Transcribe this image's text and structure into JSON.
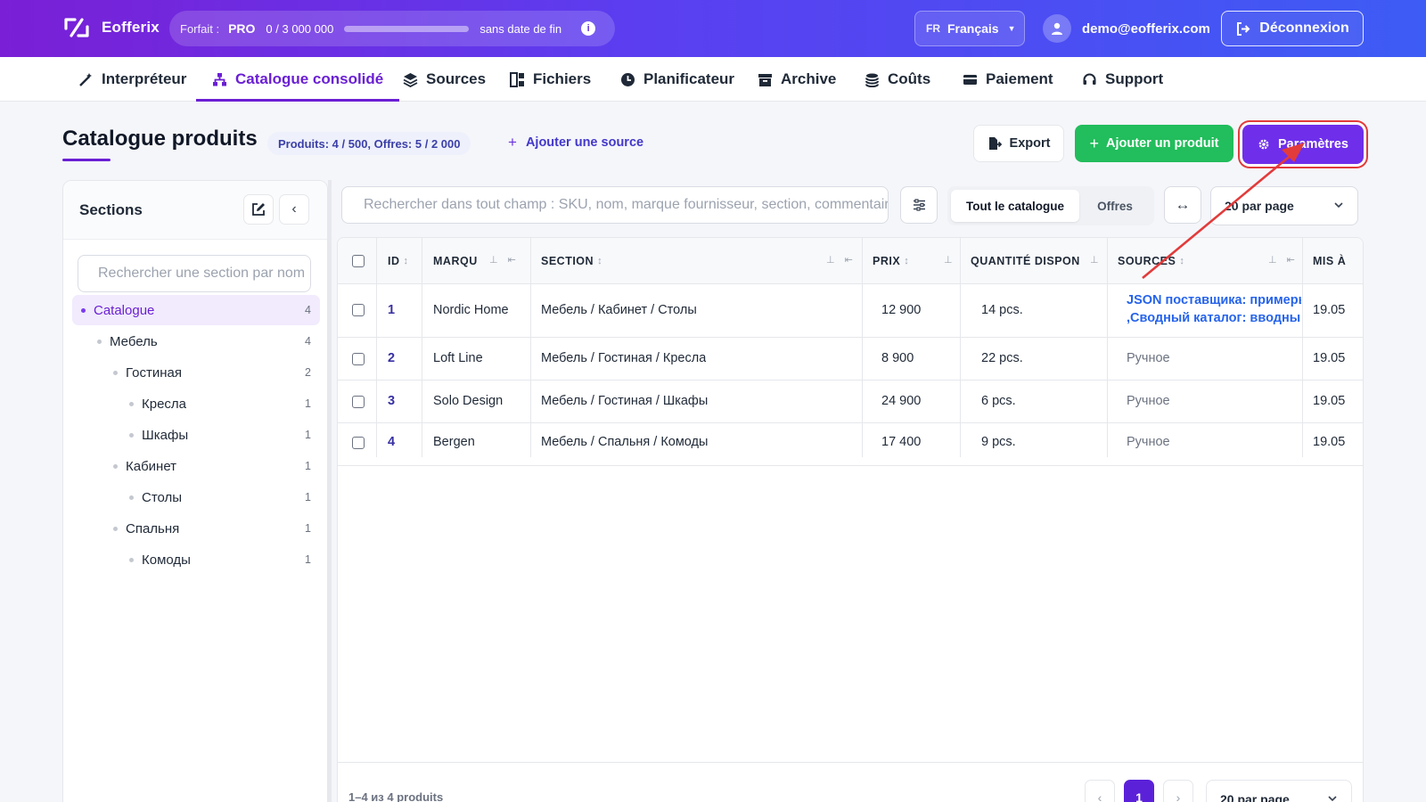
{
  "brand": {
    "name": "Eofferix"
  },
  "plan": {
    "label": "Forfait :",
    "tier": "PRO",
    "usage": "0 / 3 000 000",
    "progress": 0.0,
    "no_end": "sans date de fin",
    "info_icon": "info-icon"
  },
  "language": {
    "code": "FR",
    "name": "Français"
  },
  "user": {
    "email": "demo@eofferix.com"
  },
  "logout_label": "Déconnexion",
  "nav": {
    "items": [
      {
        "label": "Interpréteur",
        "icon": "magic-wand-icon"
      },
      {
        "label": "Catalogue consolidé",
        "icon": "sitemap-icon",
        "active": true
      },
      {
        "label": "Sources",
        "icon": "layers-icon"
      },
      {
        "label": "Fichiers",
        "icon": "files-icon"
      },
      {
        "label": "Planificateur",
        "icon": "clock-icon"
      },
      {
        "label": "Archive",
        "icon": "archive-icon"
      },
      {
        "label": "Coûts",
        "icon": "coins-icon"
      },
      {
        "label": "Paiement",
        "icon": "credit-card-icon"
      },
      {
        "label": "Support",
        "icon": "headset-icon"
      }
    ]
  },
  "page": {
    "title": "Catalogue produits",
    "counts": "Produits: 4 / 500, Offres: 5 / 2 000",
    "add_source": "Ajouter une source",
    "export_label": "Export",
    "add_product_label": "Ajouter un produit",
    "settings_label": "Paramètres"
  },
  "sidebar": {
    "title": "Sections",
    "search_placeholder": "Rechercher une section par nom",
    "tree": [
      {
        "label": "Catalogue",
        "count": "4",
        "level": 0,
        "active": true
      },
      {
        "label": "Мебель",
        "count": "4",
        "level": 1
      },
      {
        "label": "Гостиная",
        "count": "2",
        "level": 2
      },
      {
        "label": "Кресла",
        "count": "1",
        "level": 3
      },
      {
        "label": "Шкафы",
        "count": "1",
        "level": 3
      },
      {
        "label": "Кабинет",
        "count": "1",
        "level": 2
      },
      {
        "label": "Столы",
        "count": "1",
        "level": 3
      },
      {
        "label": "Спальня",
        "count": "1",
        "level": 2
      },
      {
        "label": "Комоды",
        "count": "1",
        "level": 3
      }
    ]
  },
  "toolbar": {
    "search_placeholder": "Rechercher dans tout champ : SKU, nom, marque fournisseur, section, commentaire",
    "seg_all": "Tout le catalogue",
    "seg_offers": "Offres",
    "per_page": "20 par page"
  },
  "table": {
    "columns": [
      "ID",
      "MARQU",
      "SECTION",
      "PRIX",
      "QUANTITÉ DISPON",
      "SOURCES",
      "MIS À"
    ],
    "rows": [
      {
        "id": "1",
        "brand": "Nordic Home",
        "section": "Мебель / Кабинет / Столы",
        "price": "12 900",
        "qty": "14 pcs.",
        "sources": [
          "JSON поставщика: примеры п",
          ",Сводный каталог: вводный пр"
        ],
        "updated": "19.05"
      },
      {
        "id": "2",
        "brand": "Loft Line",
        "section": "Мебель / Гостиная / Кресла",
        "price": "8 900",
        "qty": "22 pcs.",
        "sources": [
          "Ручное"
        ],
        "updated": "19.05"
      },
      {
        "id": "3",
        "brand": "Solo Design",
        "section": "Мебель / Гостиная / Шкафы",
        "price": "24 900",
        "qty": "6 pcs.",
        "sources": [
          "Ручное"
        ],
        "updated": "19.05"
      },
      {
        "id": "4",
        "brand": "Bergen",
        "section": "Мебель / Спальня / Комоды",
        "price": "17 400",
        "qty": "9 pcs.",
        "sources": [
          "Ручное"
        ],
        "updated": "19.05"
      }
    ]
  },
  "footer": {
    "range": "1–4 из 4 produits",
    "prev": "‹",
    "page": "1",
    "next": "›",
    "per_page": "20 par page"
  },
  "colors": {
    "accent": "#6a1fd4",
    "success": "#22bd5c",
    "highlight": "#e23b3b"
  }
}
